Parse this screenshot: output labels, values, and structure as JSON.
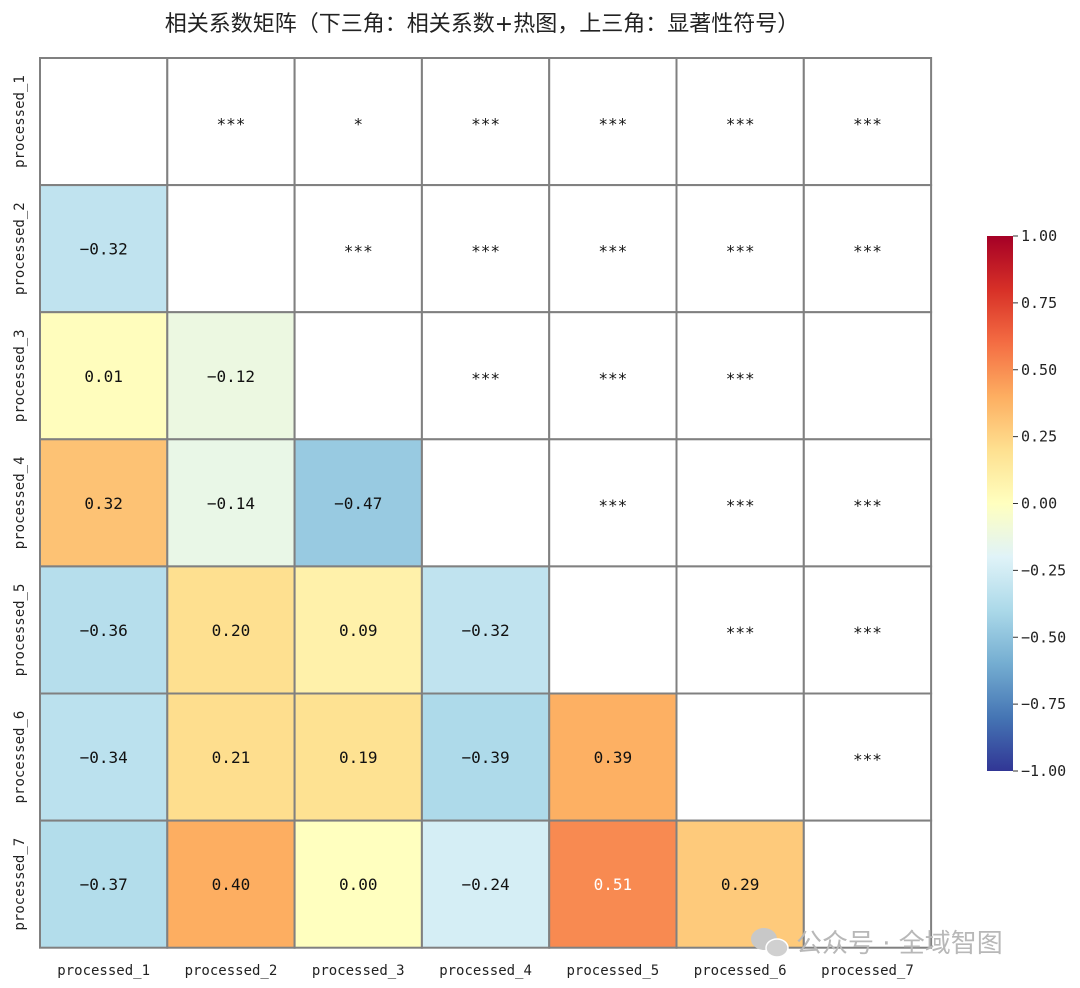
{
  "chart_data": {
    "type": "heatmap",
    "title": "相关系数矩阵（下三角：相关系数+热图，上三角：显著性符号）",
    "variables": [
      "processed_1",
      "processed_2",
      "processed_3",
      "processed_4",
      "processed_5",
      "processed_6",
      "processed_7"
    ],
    "lower_triangle_correlations": [
      {
        "row": "processed_2",
        "col": "processed_1",
        "value": -0.32,
        "label": "−0.32"
      },
      {
        "row": "processed_3",
        "col": "processed_1",
        "value": 0.01,
        "label": "0.01"
      },
      {
        "row": "processed_3",
        "col": "processed_2",
        "value": -0.12,
        "label": "−0.12"
      },
      {
        "row": "processed_4",
        "col": "processed_1",
        "value": 0.32,
        "label": "0.32"
      },
      {
        "row": "processed_4",
        "col": "processed_2",
        "value": -0.14,
        "label": "−0.14"
      },
      {
        "row": "processed_4",
        "col": "processed_3",
        "value": -0.47,
        "label": "−0.47"
      },
      {
        "row": "processed_5",
        "col": "processed_1",
        "value": -0.36,
        "label": "−0.36"
      },
      {
        "row": "processed_5",
        "col": "processed_2",
        "value": 0.2,
        "label": "0.20"
      },
      {
        "row": "processed_5",
        "col": "processed_3",
        "value": 0.09,
        "label": "0.09"
      },
      {
        "row": "processed_5",
        "col": "processed_4",
        "value": -0.32,
        "label": "−0.32"
      },
      {
        "row": "processed_6",
        "col": "processed_1",
        "value": -0.34,
        "label": "−0.34"
      },
      {
        "row": "processed_6",
        "col": "processed_2",
        "value": 0.21,
        "label": "0.21"
      },
      {
        "row": "processed_6",
        "col": "processed_3",
        "value": 0.19,
        "label": "0.19"
      },
      {
        "row": "processed_6",
        "col": "processed_4",
        "value": -0.39,
        "label": "−0.39"
      },
      {
        "row": "processed_6",
        "col": "processed_5",
        "value": 0.39,
        "label": "0.39"
      },
      {
        "row": "processed_7",
        "col": "processed_1",
        "value": -0.37,
        "label": "−0.37"
      },
      {
        "row": "processed_7",
        "col": "processed_2",
        "value": 0.4,
        "label": "0.40"
      },
      {
        "row": "processed_7",
        "col": "processed_3",
        "value": 0.0,
        "label": "0.00"
      },
      {
        "row": "processed_7",
        "col": "processed_4",
        "value": -0.24,
        "label": "−0.24"
      },
      {
        "row": "processed_7",
        "col": "processed_5",
        "value": 0.51,
        "label": "0.51"
      },
      {
        "row": "processed_7",
        "col": "processed_6",
        "value": 0.29,
        "label": "0.29"
      }
    ],
    "upper_triangle_significance": [
      {
        "row": "processed_1",
        "col": "processed_2",
        "symbol": "***"
      },
      {
        "row": "processed_1",
        "col": "processed_3",
        "symbol": "*"
      },
      {
        "row": "processed_1",
        "col": "processed_4",
        "symbol": "***"
      },
      {
        "row": "processed_1",
        "col": "processed_5",
        "symbol": "***"
      },
      {
        "row": "processed_1",
        "col": "processed_6",
        "symbol": "***"
      },
      {
        "row": "processed_1",
        "col": "processed_7",
        "symbol": "***"
      },
      {
        "row": "processed_2",
        "col": "processed_3",
        "symbol": "***"
      },
      {
        "row": "processed_2",
        "col": "processed_4",
        "symbol": "***"
      },
      {
        "row": "processed_2",
        "col": "processed_5",
        "symbol": "***"
      },
      {
        "row": "processed_2",
        "col": "processed_6",
        "symbol": "***"
      },
      {
        "row": "processed_2",
        "col": "processed_7",
        "symbol": "***"
      },
      {
        "row": "processed_3",
        "col": "processed_4",
        "symbol": "***"
      },
      {
        "row": "processed_3",
        "col": "processed_5",
        "symbol": "***"
      },
      {
        "row": "processed_3",
        "col": "processed_6",
        "symbol": "***"
      },
      {
        "row": "processed_4",
        "col": "processed_5",
        "symbol": "***"
      },
      {
        "row": "processed_4",
        "col": "processed_6",
        "symbol": "***"
      },
      {
        "row": "processed_4",
        "col": "processed_7",
        "symbol": "***"
      },
      {
        "row": "processed_5",
        "col": "processed_6",
        "symbol": "***"
      },
      {
        "row": "processed_5",
        "col": "processed_7",
        "symbol": "***"
      },
      {
        "row": "processed_6",
        "col": "processed_7",
        "symbol": "***"
      }
    ],
    "colorbar": {
      "colormap": "RdYlBu_r",
      "range": [
        -1.0,
        1.0
      ],
      "ticks": [
        1.0,
        0.75,
        0.5,
        0.25,
        0.0,
        -0.25,
        -0.5,
        -0.75,
        -1.0
      ],
      "tick_labels": [
        "1.00",
        "0.75",
        "0.50",
        "0.25",
        "0.00",
        "−0.25",
        "−0.50",
        "−0.75",
        "−1.00"
      ]
    },
    "grid": true,
    "legend_placement": "right"
  },
  "colors": {
    "cell_border": "#808080",
    "cmap_stops": [
      "#313695",
      "#4575b4",
      "#74add1",
      "#abd9e9",
      "#e0f3f8",
      "#ffffbf",
      "#fee090",
      "#fdae61",
      "#f46d43",
      "#d73027",
      "#a50026"
    ]
  },
  "watermark": {
    "text": "公众号 · 全域智图",
    "icon": "wechat-icon"
  }
}
